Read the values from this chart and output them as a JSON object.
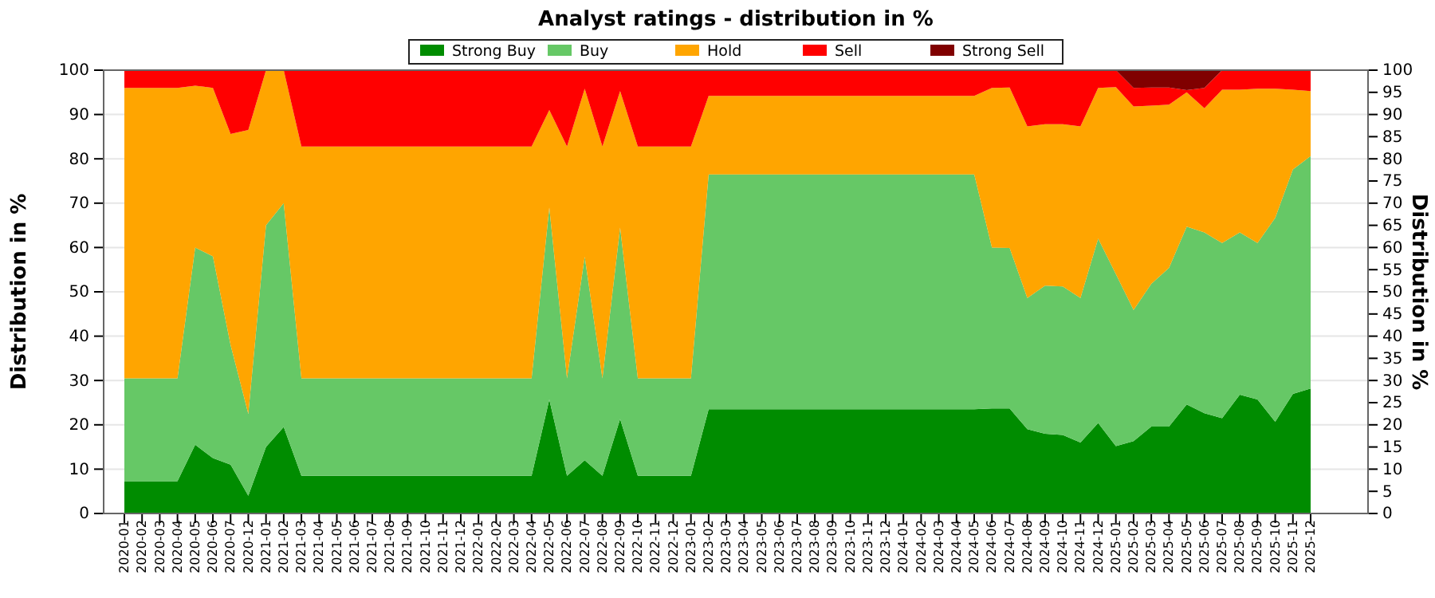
{
  "chart_data": {
    "type": "area",
    "stacked": true,
    "title": "Analyst ratings - distribution in %",
    "ylabel": "Distribution in %",
    "y2label": "Distribution in %",
    "categories": [
      "2020-01",
      "2020-02",
      "2020-03",
      "2020-04",
      "2020-05",
      "2020-06",
      "2020-07",
      "2020-12",
      "2021-01",
      "2021-02",
      "2021-03",
      "2021-04",
      "2021-05",
      "2021-06",
      "2021-07",
      "2021-08",
      "2021-09",
      "2021-10",
      "2021-11",
      "2021-12",
      "2022-01",
      "2022-02",
      "2022-03",
      "2022-04",
      "2022-05",
      "2022-06",
      "2022-07",
      "2022-08",
      "2022-09",
      "2022-10",
      "2022-11",
      "2022-12",
      "2023-01",
      "2023-02",
      "2023-03",
      "2023-04",
      "2023-05",
      "2023-06",
      "2023-07",
      "2023-08",
      "2023-09",
      "2023-10",
      "2023-11",
      "2023-12",
      "2024-01",
      "2024-02",
      "2024-03",
      "2024-04",
      "2024-05",
      "2024-06",
      "2024-07",
      "2024-08",
      "2024-09",
      "2024-10",
      "2024-11",
      "2024-12",
      "2025-01",
      "2025-02",
      "2025-03",
      "2025-04",
      "2025-05",
      "2025-06",
      "2025-07",
      "2025-08",
      "2025-09",
      "2025-10",
      "2025-11",
      "2025-12"
    ],
    "series": [
      {
        "name": "Strong Buy",
        "color": "#008c00",
        "values": [
          7.3,
          7.3,
          7.3,
          7.3,
          15.5,
          12.5,
          11,
          4,
          15,
          19.5,
          8.5,
          8.5,
          8.5,
          8.5,
          8.5,
          8.5,
          8.5,
          8.5,
          8.5,
          8.5,
          8.5,
          8.5,
          8.5,
          8.5,
          25.7,
          8.5,
          12,
          8.5,
          21.3,
          8.5,
          8.5,
          8.5,
          8.5,
          23.5,
          23.5,
          23.5,
          23.5,
          23.5,
          23.5,
          23.5,
          23.5,
          23.5,
          23.5,
          23.5,
          23.5,
          23.5,
          23.5,
          23.5,
          23.5,
          23.7,
          23.7,
          19,
          18,
          17.7,
          16,
          20.4,
          15.2,
          16.3,
          19.6,
          19.6,
          24.6,
          22.6,
          21.5,
          26.8,
          25.7,
          20.7,
          27,
          28.2
        ]
      },
      {
        "name": "Buy",
        "color": "#66c866",
        "values": [
          23.2,
          23.2,
          23.2,
          23.2,
          44.5,
          45.5,
          27,
          18.5,
          50,
          50.5,
          22,
          22,
          22,
          22,
          22,
          22,
          22,
          22,
          22,
          22,
          22,
          22,
          22,
          22,
          43.3,
          22,
          45.9,
          22,
          43.2,
          22,
          22,
          22,
          22,
          53,
          53,
          53,
          53,
          53,
          53,
          53,
          53,
          53,
          53,
          53,
          53,
          53,
          53,
          53,
          53,
          36.3,
          36.2,
          29.6,
          33.4,
          33.5,
          32.6,
          41.6,
          38.8,
          29.6,
          32.2,
          35.8,
          40.1,
          40.8,
          39.5,
          36.6,
          35.3,
          46,
          50.6,
          52.4
        ]
      },
      {
        "name": "Hold",
        "color": "#ffa500",
        "values": [
          65.5,
          65.5,
          65.5,
          65.5,
          36.5,
          38,
          47.6,
          64,
          35,
          30,
          52.3,
          52.3,
          52.3,
          52.3,
          52.3,
          52.3,
          52.3,
          52.3,
          52.3,
          52.3,
          52.3,
          52.3,
          52.3,
          52.3,
          22,
          52.3,
          37.9,
          52.3,
          30.8,
          52.3,
          52.3,
          52.3,
          52.3,
          17.7,
          17.7,
          17.7,
          17.7,
          17.7,
          17.7,
          17.7,
          17.7,
          17.7,
          17.7,
          17.7,
          17.7,
          17.7,
          17.7,
          17.7,
          17.7,
          36,
          36.2,
          38.7,
          36.4,
          36.6,
          38.7,
          34,
          42.2,
          45.9,
          40.2,
          36.8,
          30.3,
          28,
          34.6,
          32.2,
          34.8,
          29.1,
          18,
          14.7
        ]
      },
      {
        "name": "Sell",
        "color": "#ff0000",
        "values": [
          4,
          4,
          4,
          4,
          3.5,
          4,
          14.4,
          13.5,
          0,
          0,
          17.2,
          17.2,
          17.2,
          17.2,
          17.2,
          17.2,
          17.2,
          17.2,
          17.2,
          17.2,
          17.2,
          17.2,
          17.2,
          17.2,
          9,
          17.2,
          4.2,
          17.2,
          4.7,
          17.2,
          17.2,
          17.2,
          17.2,
          5.8,
          5.8,
          5.8,
          5.8,
          5.8,
          5.8,
          5.8,
          5.8,
          5.8,
          5.8,
          5.8,
          5.8,
          5.8,
          5.8,
          5.8,
          5.8,
          4,
          3.9,
          12.7,
          12.2,
          12.2,
          12.7,
          4,
          3.8,
          4.2,
          4.1,
          3.9,
          0.5,
          4.6,
          4.4,
          4.4,
          4.2,
          4.2,
          4.4,
          4.7
        ]
      },
      {
        "name": "Strong Sell",
        "color": "#800000",
        "values": [
          0,
          0,
          0,
          0,
          0,
          0,
          0,
          0,
          0,
          0,
          0,
          0,
          0,
          0,
          0,
          0,
          0,
          0,
          0,
          0,
          0,
          0,
          0,
          0,
          0,
          0,
          0,
          0,
          0,
          0,
          0,
          0,
          0,
          0,
          0,
          0,
          0,
          0,
          0,
          0,
          0,
          0,
          0,
          0,
          0,
          0,
          0,
          0,
          0,
          0,
          0,
          0,
          0,
          0,
          0,
          0,
          0,
          4,
          3.9,
          3.9,
          4.5,
          4,
          0,
          0,
          0,
          0,
          0,
          0
        ]
      }
    ],
    "ylim": [
      0,
      100
    ],
    "yticks": [
      0,
      10,
      20,
      30,
      40,
      50,
      60,
      70,
      80,
      90,
      100
    ],
    "y2lim": [
      0,
      100
    ],
    "y2ticks": [
      0,
      5,
      10,
      15,
      20,
      25,
      30,
      35,
      40,
      45,
      50,
      55,
      60,
      65,
      70,
      75,
      80,
      85,
      90,
      95,
      100
    ],
    "grid": "y",
    "legend": "top"
  }
}
